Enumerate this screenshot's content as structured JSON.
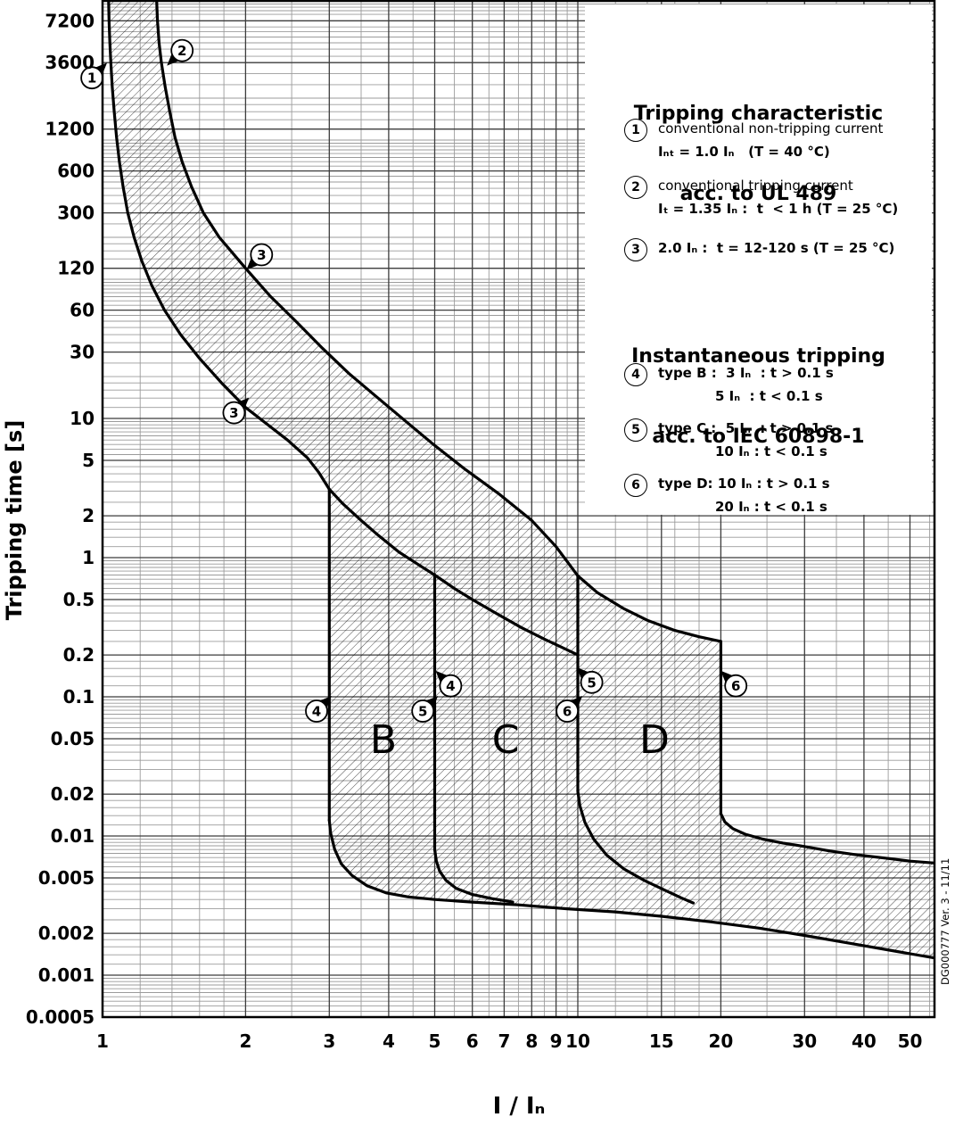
{
  "figure": {
    "doc_number": "DG000777 Ver. 3 - 11/11"
  },
  "chart_data": {
    "type": "line",
    "title": "Tripping characteristic acc. to UL 489 / Instantaneous tripping acc. to IEC 60898-1",
    "xlabel": "I / Iₙ",
    "ylabel": "Tripping time [s]",
    "xlim": [
      1,
      56.3
    ],
    "ylim": [
      0.0005,
      10000
    ],
    "x_ticks": [
      1,
      2,
      3,
      4,
      5,
      6,
      7,
      8,
      9,
      10,
      15,
      20,
      30,
      40,
      50
    ],
    "y_ticks": [
      7200,
      3600,
      1200,
      600,
      300,
      120,
      60,
      30,
      10,
      5,
      2,
      1,
      0.5,
      0.2,
      0.1,
      0.05,
      0.02,
      0.01,
      0.005,
      0.002,
      0.001,
      0.0005
    ],
    "grid": "log-minor-and-major",
    "legend_position": "top-right",
    "region_labels": [
      {
        "text": "B",
        "x": 3.9,
        "t": 0.05
      },
      {
        "text": "C",
        "x": 7.05,
        "t": 0.05
      },
      {
        "text": "D",
        "x": 14.5,
        "t": 0.05
      }
    ],
    "series": [
      {
        "name": "upper_tripping",
        "points": [
          [
            1.3,
            10000
          ],
          [
            1.305,
            7200
          ],
          [
            1.315,
            5000
          ],
          [
            1.33,
            3600
          ],
          [
            1.355,
            2400
          ],
          [
            1.385,
            1600
          ],
          [
            1.42,
            1050
          ],
          [
            1.47,
            700
          ],
          [
            1.54,
            460
          ],
          [
            1.63,
            300
          ],
          [
            1.76,
            200
          ],
          [
            2.0,
            120
          ],
          [
            2.25,
            76
          ],
          [
            2.55,
            50
          ],
          [
            2.9,
            32
          ],
          [
            3.3,
            21
          ],
          [
            3.8,
            14
          ],
          [
            4.4,
            9.2
          ],
          [
            5.0,
            6.4
          ],
          [
            5.8,
            4.3
          ],
          [
            6.8,
            2.9
          ],
          [
            8.0,
            1.85
          ],
          [
            9.0,
            1.2
          ],
          [
            10.0,
            0.74
          ],
          [
            11,
            0.56
          ],
          [
            12.5,
            0.43
          ],
          [
            14,
            0.355
          ],
          [
            16,
            0.3
          ],
          [
            18,
            0.27
          ],
          [
            20,
            0.25
          ]
        ]
      },
      {
        "name": "lower_non_tripping",
        "points": [
          [
            1.03,
            10000
          ],
          [
            1.032,
            7200
          ],
          [
            1.036,
            5000
          ],
          [
            1.041,
            3600
          ],
          [
            1.048,
            2400
          ],
          [
            1.058,
            1600
          ],
          [
            1.07,
            1050
          ],
          [
            1.085,
            700
          ],
          [
            1.105,
            460
          ],
          [
            1.13,
            300
          ],
          [
            1.165,
            200
          ],
          [
            1.21,
            135
          ],
          [
            1.27,
            90
          ],
          [
            1.35,
            60
          ],
          [
            1.46,
            40
          ],
          [
            1.6,
            27
          ],
          [
            1.78,
            18
          ],
          [
            2.0,
            12
          ],
          [
            2.2,
            9.3
          ],
          [
            2.45,
            7.0
          ],
          [
            2.7,
            5.2
          ],
          [
            2.85,
            4.1
          ],
          [
            3.0,
            3.1
          ]
        ]
      },
      {
        "name": "b_top",
        "points": [
          [
            3.0,
            3.1
          ],
          [
            3.2,
            2.45
          ],
          [
            3.5,
            1.85
          ],
          [
            3.8,
            1.45
          ],
          [
            4.2,
            1.1
          ],
          [
            4.6,
            0.9
          ],
          [
            5.0,
            0.75
          ]
        ]
      },
      {
        "name": "c_top",
        "points": [
          [
            5.0,
            0.75
          ],
          [
            5.5,
            0.6
          ],
          [
            6.0,
            0.5
          ],
          [
            6.8,
            0.39
          ],
          [
            7.6,
            0.315
          ],
          [
            8.5,
            0.26
          ],
          [
            9.3,
            0.225
          ],
          [
            10.0,
            0.2
          ]
        ]
      },
      {
        "name": "line_3In",
        "points": [
          [
            3,
            3.1
          ],
          [
            3,
            0.013
          ]
        ]
      },
      {
        "name": "foot_3In",
        "points": [
          [
            3,
            0.013
          ],
          [
            3.02,
            0.0105
          ],
          [
            3.08,
            0.008
          ],
          [
            3.18,
            0.0063
          ],
          [
            3.35,
            0.0052
          ],
          [
            3.6,
            0.0044
          ],
          [
            3.95,
            0.0039
          ],
          [
            4.4,
            0.00365
          ],
          [
            5,
            0.0035
          ],
          [
            6,
            0.00335
          ],
          [
            7.5,
            0.0032
          ],
          [
            9.5,
            0.003
          ],
          [
            12,
            0.00285
          ],
          [
            15,
            0.00265
          ],
          [
            19,
            0.00242
          ],
          [
            24,
            0.00218
          ],
          [
            30,
            0.00193
          ],
          [
            38,
            0.00168
          ],
          [
            47,
            0.00148
          ],
          [
            56.3,
            0.00133
          ]
        ]
      },
      {
        "name": "line_5In",
        "points": [
          [
            5,
            0.75
          ],
          [
            5,
            0.008
          ]
        ]
      },
      {
        "name": "foot_5In",
        "points": [
          [
            5,
            0.008
          ],
          [
            5.04,
            0.0066
          ],
          [
            5.12,
            0.0056
          ],
          [
            5.28,
            0.0048
          ],
          [
            5.55,
            0.0042
          ],
          [
            6.0,
            0.0038
          ],
          [
            6.6,
            0.00355
          ],
          [
            7.3,
            0.00335
          ]
        ]
      },
      {
        "name": "line_10In",
        "points": [
          [
            10,
            0.74
          ],
          [
            10,
            0.021
          ]
        ]
      },
      {
        "name": "foot_10In",
        "points": [
          [
            10,
            0.021
          ],
          [
            10.1,
            0.0165
          ],
          [
            10.35,
            0.0125
          ],
          [
            10.8,
            0.0095
          ],
          [
            11.5,
            0.0073
          ],
          [
            12.5,
            0.0058
          ],
          [
            13.8,
            0.0048
          ],
          [
            15.2,
            0.0041
          ],
          [
            16.5,
            0.0036
          ],
          [
            17.5,
            0.0033
          ]
        ]
      },
      {
        "name": "line_20In",
        "points": [
          [
            20,
            0.25
          ],
          [
            20,
            0.0145
          ]
        ]
      },
      {
        "name": "foot_20In",
        "points": [
          [
            20,
            0.0145
          ],
          [
            20.4,
            0.0126
          ],
          [
            21.2,
            0.0113
          ],
          [
            22.5,
            0.0103
          ],
          [
            24.5,
            0.0095
          ],
          [
            27,
            0.0089
          ],
          [
            30,
            0.0084
          ],
          [
            34,
            0.0078
          ],
          [
            39,
            0.0073
          ],
          [
            45,
            0.0069
          ],
          [
            50,
            0.0066
          ],
          [
            56.3,
            0.0064
          ]
        ]
      }
    ],
    "markers": [
      {
        "label": "1",
        "x": 0.95,
        "t": 2800,
        "dir": "ne"
      },
      {
        "label": "2",
        "x": 1.47,
        "t": 4400,
        "dir": "sw"
      },
      {
        "label": "3",
        "x": 2.16,
        "t": 150,
        "dir": "sw"
      },
      {
        "label": "3",
        "x": 1.89,
        "t": 11,
        "dir": "ne"
      },
      {
        "label": "4",
        "x": 2.82,
        "t": 0.079,
        "dir": "ne"
      },
      {
        "label": "4",
        "x": 5.4,
        "t": 0.12,
        "dir": "nw"
      },
      {
        "label": "5",
        "x": 4.72,
        "t": 0.079,
        "dir": "ne"
      },
      {
        "label": "5",
        "x": 10.7,
        "t": 0.127,
        "dir": "nw"
      },
      {
        "label": "6",
        "x": 9.5,
        "t": 0.079,
        "dir": "ne"
      },
      {
        "label": "6",
        "x": 21.5,
        "t": 0.12,
        "dir": "nw"
      }
    ]
  },
  "legend": {
    "title1_line1": "Tripping characteristic",
    "title1_line2": "acc. to UL 489",
    "items_ul489": [
      {
        "num": "1",
        "line1": "conventional non-tripping current",
        "line2": "Iₙₜ = 1.0 Iₙ   (T = 40 °C)"
      },
      {
        "num": "2",
        "line1": "conventional tripping current",
        "line2": "Iₜ = 1.35 Iₙ :  t  < 1 h (T = 25 °C)"
      },
      {
        "num": "3",
        "line1": "2.0 Iₙ :  t = 12-120 s (T = 25 °C)",
        "line2": ""
      }
    ],
    "title2_line1": "Instantaneous tripping",
    "title2_line2": "acc. to IEC 60898-1",
    "items_iec": [
      {
        "num": "4",
        "line1": "type B :  3 Iₙ  : t > 0.1 s",
        "line2": "5 Iₙ  : t < 0.1 s"
      },
      {
        "num": "5",
        "line1": "type C :  5 Iₙ  : t > 0.1 s",
        "line2": "10 Iₙ : t < 0.1 s"
      },
      {
        "num": "6",
        "line1": "type D: 10 Iₙ : t > 0.1 s",
        "line2": "20 Iₙ : t < 0.1 s"
      }
    ]
  }
}
